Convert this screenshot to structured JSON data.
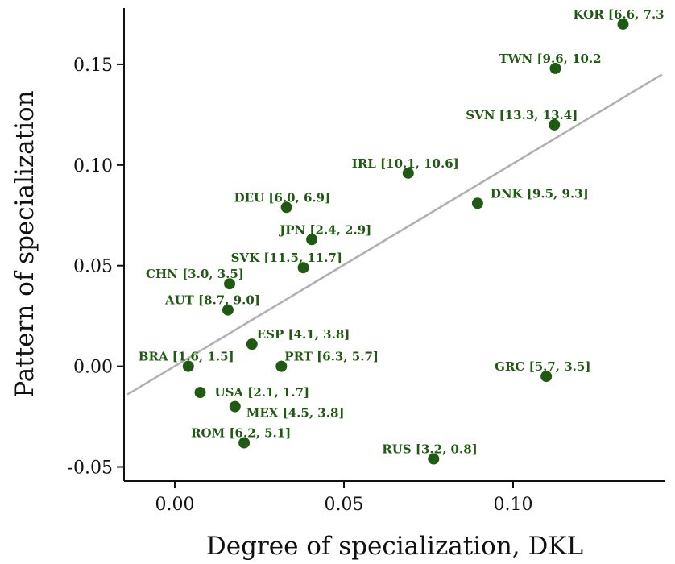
{
  "chart_data": {
    "type": "scatter",
    "xlabel": "Degree of specialization, DKL",
    "ylabel": "Pattern of specialization",
    "xlim": [
      -0.015,
      0.145
    ],
    "ylim": [
      -0.057,
      0.178
    ],
    "x_ticks": [
      0.0,
      0.05,
      0.1
    ],
    "x_tick_labels": [
      "0.00",
      "0.05",
      "0.10"
    ],
    "y_ticks": [
      -0.05,
      0.0,
      0.05,
      0.1,
      0.15
    ],
    "y_tick_labels": [
      "-0.05",
      "0.00",
      "0.05",
      "0.10",
      "0.15"
    ],
    "grid": false,
    "point_color": "#1f5a12",
    "fit_color": "#b0b0b0",
    "trend_line": {
      "x": [
        -0.014,
        0.144
      ],
      "y": [
        -0.014,
        0.145
      ]
    },
    "points": [
      {
        "x": 0.1325,
        "y": 0.17,
        "label": "KOR [6.6, 7.3"
      },
      {
        "x": 0.1125,
        "y": 0.148,
        "label": "TWN [9.6, 10.2"
      },
      {
        "x": 0.1122,
        "y": 0.12,
        "label": "SVN [13.3, 13.4]"
      },
      {
        "x": 0.069,
        "y": 0.096,
        "label": "IRL [10.1, 10.6]"
      },
      {
        "x": 0.0895,
        "y": 0.081,
        "label": "DNK [9.5, 9.3]"
      },
      {
        "x": 0.033,
        "y": 0.079,
        "label": "DEU [6.0, 6.9]"
      },
      {
        "x": 0.0405,
        "y": 0.063,
        "label": "JPN [2.4, 2.9]"
      },
      {
        "x": 0.038,
        "y": 0.049,
        "label": "SVK [11.5, 11.7]"
      },
      {
        "x": 0.0162,
        "y": 0.041,
        "label": "CHN [3.0, 3.5]"
      },
      {
        "x": 0.0157,
        "y": 0.028,
        "label": "AUT [8.7, 9.0]"
      },
      {
        "x": 0.0228,
        "y": 0.011,
        "label": "ESP [4.1, 3.8]"
      },
      {
        "x": 0.004,
        "y": 0.0,
        "label": "BRA [1.6, 1.5]"
      },
      {
        "x": 0.0315,
        "y": 0.0,
        "label": "PRT [6.3, 5.7]"
      },
      {
        "x": 0.1098,
        "y": -0.005,
        "label": "GRC [5.7, 3.5]"
      },
      {
        "x": 0.0075,
        "y": -0.013,
        "label": "USA [2.1, 1.7]"
      },
      {
        "x": 0.0178,
        "y": -0.02,
        "label": "MEX [4.5, 3.8]"
      },
      {
        "x": 0.0205,
        "y": -0.038,
        "label": "ROM [6.2, 5.1]"
      },
      {
        "x": 0.0765,
        "y": -0.046,
        "label": "RUS [3.2, 0.8]"
      }
    ]
  }
}
